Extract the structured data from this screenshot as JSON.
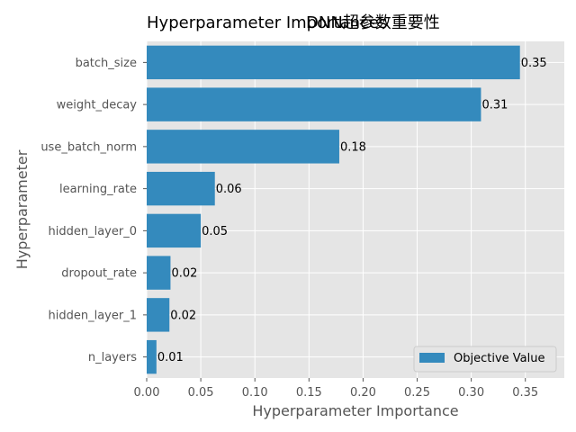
{
  "chart_data": {
    "type": "bar",
    "orientation": "horizontal",
    "title": "Hyperparameter Importances",
    "title_overlay": "DNN超参数重要性",
    "xlabel": "Hyperparameter Importance",
    "ylabel": "Hyperparameter",
    "categories": [
      "batch_size",
      "weight_decay",
      "use_batch_norm",
      "learning_rate",
      "hidden_layer_0",
      "dropout_rate",
      "hidden_layer_1",
      "n_layers"
    ],
    "series": [
      {
        "name": "Objective Value",
        "values": [
          0.345,
          0.309,
          0.178,
          0.063,
          0.05,
          0.022,
          0.021,
          0.009
        ],
        "labels": [
          "0.35",
          "0.31",
          "0.18",
          "0.06",
          "0.05",
          "0.02",
          "0.02",
          "0.01"
        ]
      }
    ],
    "xlim": [
      0,
      0.386
    ],
    "xticks": [
      0.0,
      0.05,
      0.1,
      0.15,
      0.2,
      0.25,
      0.3,
      0.35
    ],
    "xtick_labels": [
      "0.00",
      "0.05",
      "0.10",
      "0.15",
      "0.20",
      "0.25",
      "0.30",
      "0.35"
    ],
    "grid": true,
    "legend_position": "bottom-right",
    "colors": {
      "bar": "#348abd",
      "plot_bg": "#e5e5e5",
      "grid": "#ffffff"
    }
  }
}
